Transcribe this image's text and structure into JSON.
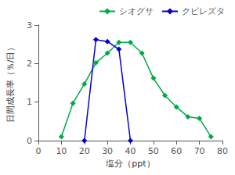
{
  "chart_data": {
    "type": "line",
    "xlabel": "塩分（ppt）",
    "ylabel": "日間成長率（％/日）",
    "series": [
      {
        "name": "シオグサ",
        "color": "#00aa44",
        "marker": "diamond",
        "x": [
          10,
          15,
          20,
          25,
          30,
          35,
          40,
          45,
          50,
          55,
          60,
          65,
          70,
          75
        ],
        "values": [
          0.1,
          0.97,
          1.47,
          2.02,
          2.27,
          2.55,
          2.55,
          2.27,
          1.62,
          1.17,
          0.87,
          0.62,
          0.58,
          0.1
        ]
      },
      {
        "name": "クビレズタ",
        "color": "#0000cc",
        "marker": "diamond",
        "x": [
          20,
          25,
          30,
          35,
          40
        ],
        "values": [
          0.0,
          2.62,
          2.57,
          2.37,
          0.0
        ]
      }
    ],
    "xlim": [
      0,
      80
    ],
    "ylim": [
      0,
      3
    ],
    "xticks": [
      0,
      10,
      20,
      30,
      40,
      50,
      60,
      70,
      80
    ],
    "yticks": [
      0,
      1,
      2,
      3
    ],
    "grid": false,
    "legend": "upper right"
  }
}
